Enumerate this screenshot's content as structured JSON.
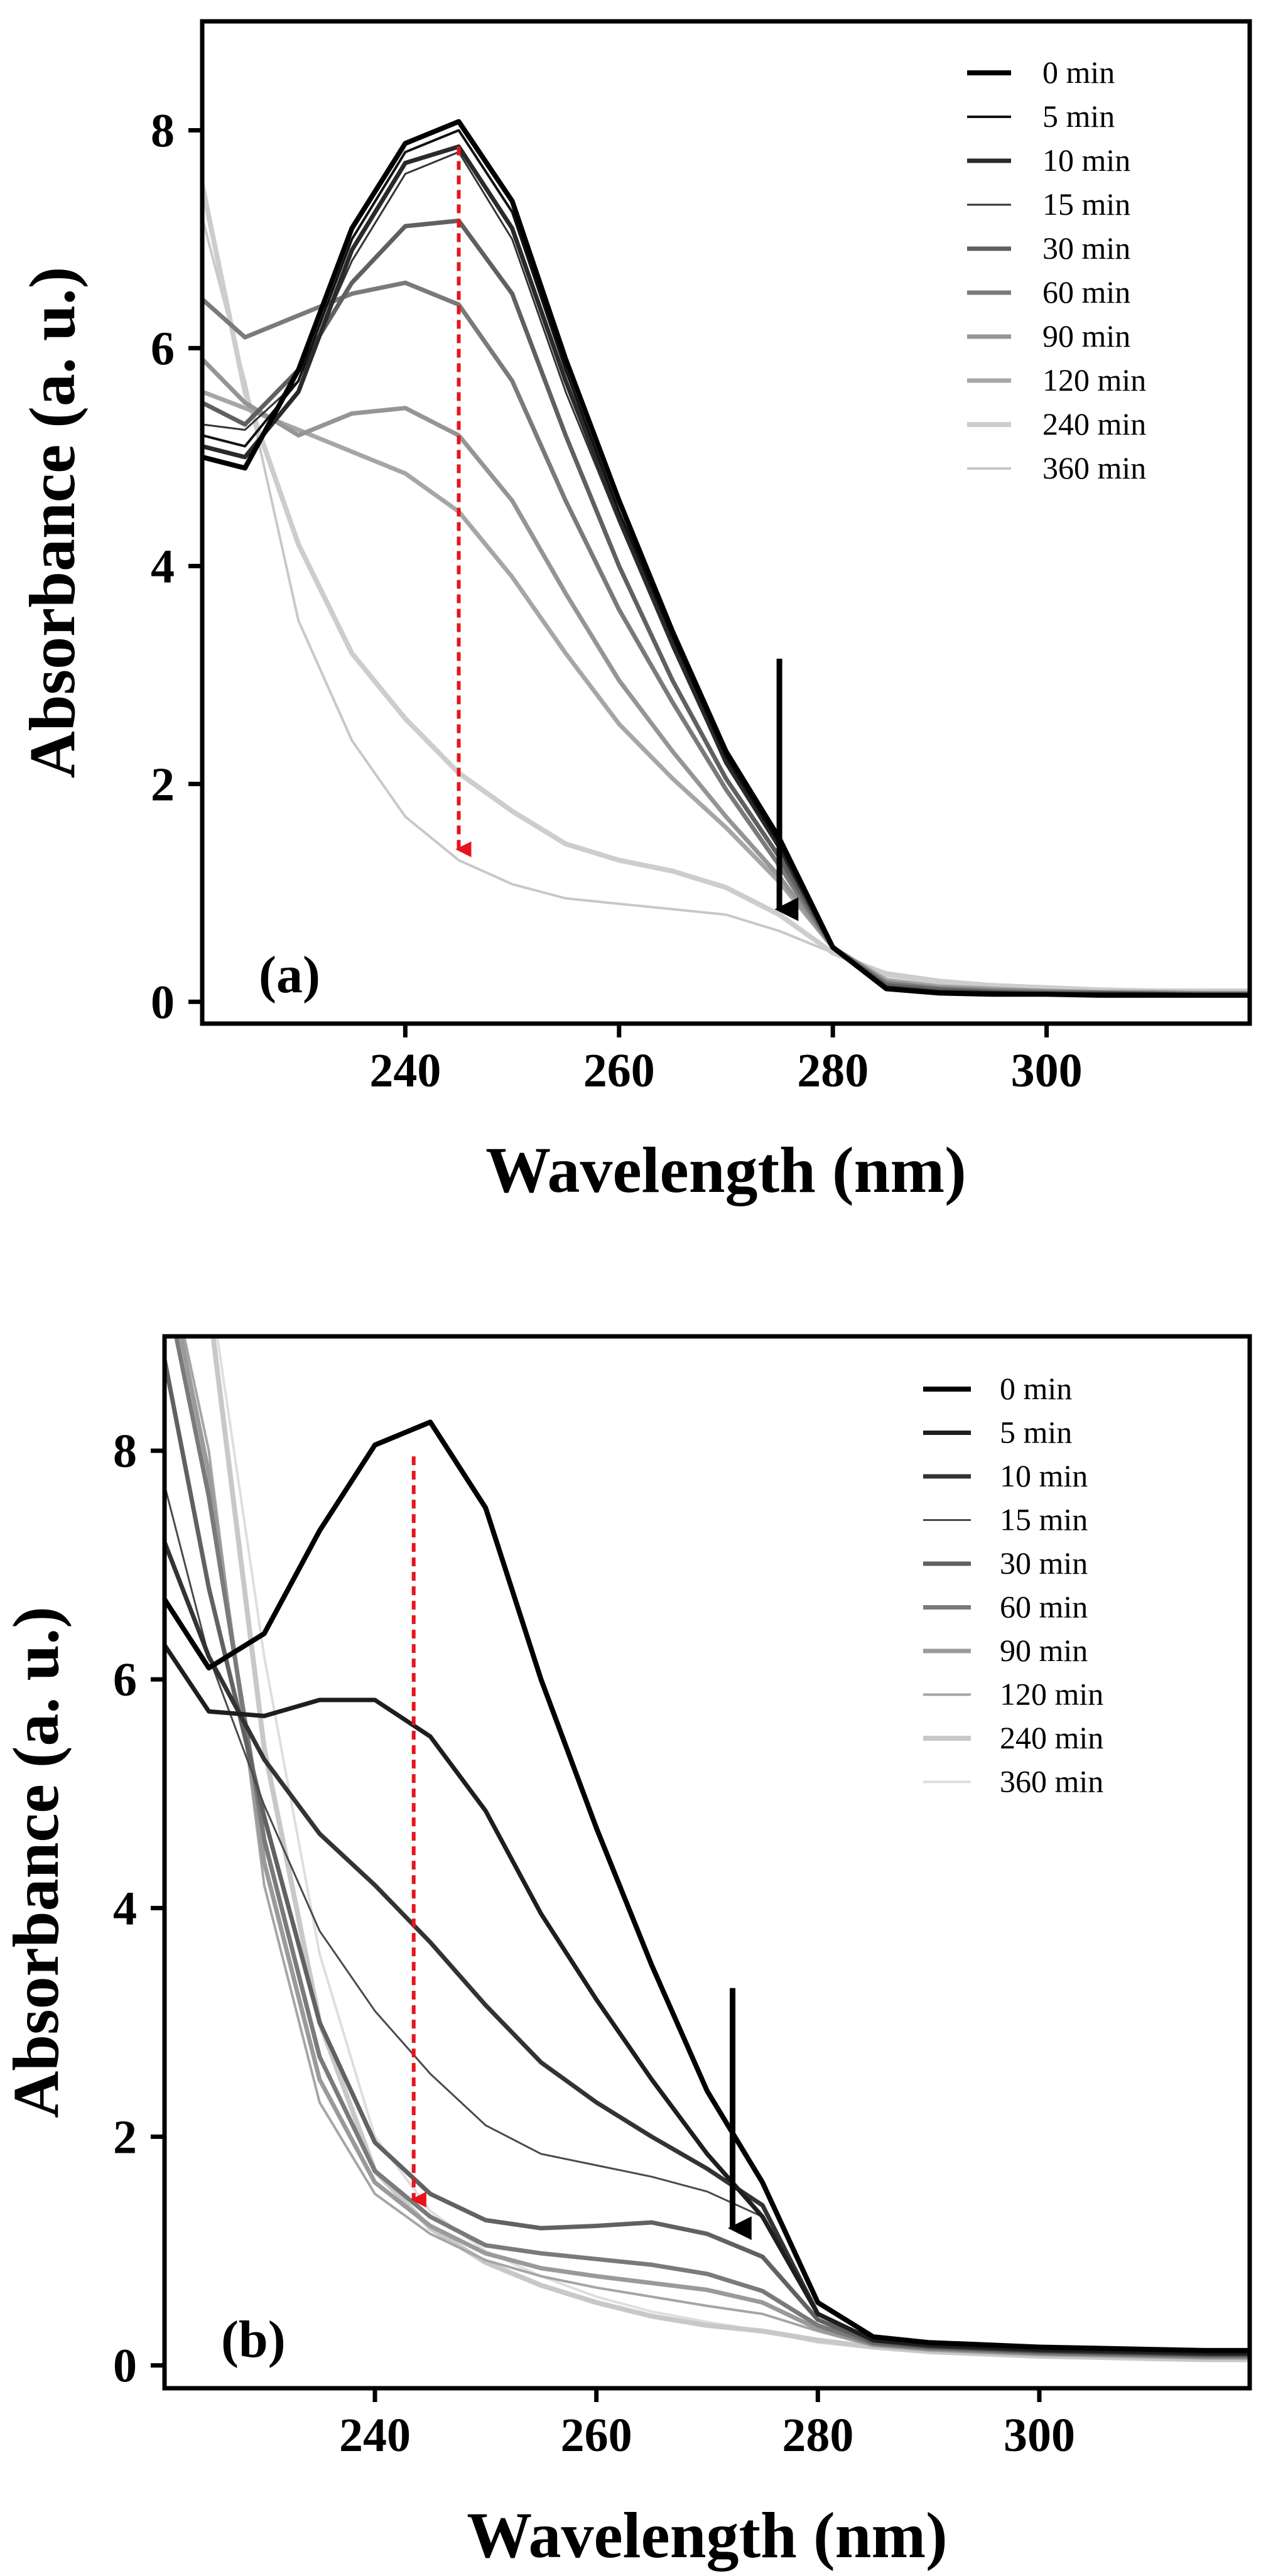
{
  "chart_data": [
    {
      "type": "line",
      "panel_label": "(a)",
      "xlabel": "Wavelength (nm)",
      "ylabel": "Absorbance (a. u.)",
      "xlim": [
        221,
        319
      ],
      "ylim": [
        -0.2,
        9.0
      ],
      "xticks": [
        240,
        260,
        280,
        300
      ],
      "yticks": [
        0,
        2,
        4,
        6,
        8
      ],
      "grid": false,
      "legend_position": "top-right",
      "x": [
        221,
        225,
        230,
        235,
        240,
        245,
        250,
        255,
        260,
        265,
        270,
        275,
        280,
        285,
        290,
        295,
        300,
        305,
        310,
        315,
        319
      ],
      "series": [
        {
          "name": "0 min",
          "color": "#000000",
          "width": 8,
          "values": [
            5.0,
            4.9,
            5.8,
            7.1,
            7.88,
            8.08,
            7.35,
            5.9,
            4.6,
            3.4,
            2.3,
            1.5,
            0.5,
            0.12,
            0.08,
            0.07,
            0.07,
            0.06,
            0.06,
            0.06,
            0.06
          ]
        },
        {
          "name": "5 min",
          "color": "#111111",
          "width": 4,
          "values": [
            5.2,
            5.1,
            5.7,
            7.0,
            7.8,
            8.0,
            7.25,
            5.8,
            4.5,
            3.35,
            2.25,
            1.45,
            0.5,
            0.13,
            0.09,
            0.08,
            0.07,
            0.07,
            0.06,
            0.06,
            0.06
          ]
        },
        {
          "name": "10 min",
          "color": "#2a2a2a",
          "width": 7,
          "values": [
            5.1,
            5.0,
            5.6,
            6.9,
            7.7,
            7.85,
            7.1,
            5.7,
            4.45,
            3.3,
            2.2,
            1.42,
            0.5,
            0.13,
            0.09,
            0.08,
            0.07,
            0.07,
            0.07,
            0.06,
            0.06
          ]
        },
        {
          "name": "15 min",
          "color": "#333333",
          "width": 3,
          "values": [
            5.3,
            5.25,
            5.7,
            6.8,
            7.6,
            7.8,
            7.0,
            5.6,
            4.4,
            3.25,
            2.18,
            1.4,
            0.52,
            0.14,
            0.1,
            0.09,
            0.08,
            0.07,
            0.07,
            0.07,
            0.07
          ]
        },
        {
          "name": "30 min",
          "color": "#606060",
          "width": 7,
          "values": [
            5.5,
            5.3,
            5.8,
            6.6,
            7.12,
            7.17,
            6.5,
            5.2,
            4.0,
            2.95,
            2.05,
            1.33,
            0.5,
            0.15,
            0.11,
            0.09,
            0.08,
            0.08,
            0.07,
            0.07,
            0.07
          ]
        },
        {
          "name": "60 min",
          "color": "#7a7a7a",
          "width": 7,
          "values": [
            6.45,
            6.1,
            6.3,
            6.5,
            6.6,
            6.4,
            5.7,
            4.6,
            3.6,
            2.75,
            1.95,
            1.25,
            0.5,
            0.17,
            0.12,
            0.1,
            0.09,
            0.08,
            0.08,
            0.07,
            0.07
          ]
        },
        {
          "name": "90 min",
          "color": "#959595",
          "width": 7,
          "values": [
            5.9,
            5.5,
            5.2,
            5.4,
            5.45,
            5.2,
            4.6,
            3.75,
            2.95,
            2.3,
            1.7,
            1.15,
            0.5,
            0.18,
            0.13,
            0.11,
            0.1,
            0.09,
            0.08,
            0.08,
            0.08
          ]
        },
        {
          "name": "120 min",
          "color": "#a6a6a6",
          "width": 7,
          "values": [
            5.6,
            5.45,
            5.25,
            5.05,
            4.85,
            4.5,
            3.9,
            3.2,
            2.55,
            2.05,
            1.6,
            1.1,
            0.5,
            0.2,
            0.14,
            0.12,
            0.1,
            0.09,
            0.09,
            0.08,
            0.08
          ]
        },
        {
          "name": "240 min",
          "color": "#cdcdcd",
          "width": 8,
          "values": [
            7.5,
            5.6,
            4.2,
            3.2,
            2.6,
            2.1,
            1.75,
            1.45,
            1.3,
            1.2,
            1.05,
            0.8,
            0.45,
            0.25,
            0.18,
            0.15,
            0.13,
            0.11,
            0.1,
            0.1,
            0.1
          ]
        },
        {
          "name": "360 min",
          "color": "#c8c8c8",
          "width": 4,
          "values": [
            7.2,
            5.7,
            3.5,
            2.4,
            1.7,
            1.3,
            1.08,
            0.95,
            0.9,
            0.85,
            0.8,
            0.65,
            0.45,
            0.27,
            0.2,
            0.16,
            0.13,
            0.12,
            0.1,
            0.1,
            0.1
          ]
        }
      ],
      "arrows": [
        {
          "color": "#e8141b",
          "dashed": true,
          "x": 245,
          "y_start": 7.85,
          "y_end": 1.4
        },
        {
          "color": "#000000",
          "dashed": false,
          "x": 275,
          "y_start": 3.15,
          "y_end": 0.85
        }
      ]
    },
    {
      "type": "line",
      "panel_label": "(b)",
      "xlabel": "Wavelength (nm)",
      "ylabel": "Absorbance (a. u.)",
      "xlim": [
        221,
        319
      ],
      "ylim": [
        -0.2,
        9.0
      ],
      "xticks": [
        240,
        260,
        280,
        300
      ],
      "yticks": [
        0,
        2,
        4,
        6,
        8
      ],
      "grid": false,
      "legend_position": "top-right",
      "x": [
        221,
        225,
        230,
        235,
        240,
        245,
        250,
        255,
        260,
        265,
        270,
        275,
        280,
        285,
        290,
        295,
        300,
        305,
        310,
        315,
        319
      ],
      "series": [
        {
          "name": "0 min",
          "color": "#000000",
          "width": 8,
          "values": [
            6.7,
            6.1,
            6.4,
            7.3,
            8.05,
            8.25,
            7.5,
            6.0,
            4.7,
            3.5,
            2.4,
            1.6,
            0.55,
            0.25,
            0.2,
            0.18,
            0.16,
            0.15,
            0.14,
            0.13,
            0.13
          ]
        },
        {
          "name": "5 min",
          "color": "#1e1e1e",
          "width": 7,
          "values": [
            6.3,
            5.72,
            5.68,
            5.82,
            5.82,
            5.5,
            4.85,
            3.95,
            3.2,
            2.5,
            1.85,
            1.3,
            0.45,
            0.22,
            0.18,
            0.16,
            0.14,
            0.13,
            0.12,
            0.11,
            0.11
          ]
        },
        {
          "name": "10 min",
          "color": "#333333",
          "width": 7,
          "values": [
            7.2,
            6.2,
            5.3,
            4.65,
            4.2,
            3.7,
            3.15,
            2.65,
            2.3,
            2.0,
            1.72,
            1.4,
            0.45,
            0.22,
            0.17,
            0.15,
            0.13,
            0.12,
            0.11,
            0.1,
            0.1
          ]
        },
        {
          "name": "15 min",
          "color": "#4a4a4a",
          "width": 3,
          "values": [
            7.7,
            6.2,
            4.9,
            3.8,
            3.1,
            2.55,
            2.1,
            1.85,
            1.75,
            1.65,
            1.52,
            1.3,
            0.45,
            0.22,
            0.17,
            0.15,
            0.13,
            0.12,
            0.11,
            0.1,
            0.1
          ]
        },
        {
          "name": "30 min",
          "color": "#616161",
          "width": 7,
          "values": [
            8.8,
            6.8,
            4.8,
            3.0,
            1.95,
            1.5,
            1.27,
            1.2,
            1.22,
            1.25,
            1.15,
            0.95,
            0.4,
            0.2,
            0.16,
            0.14,
            0.12,
            0.11,
            0.1,
            0.09,
            0.09
          ]
        },
        {
          "name": "60 min",
          "color": "#7a7a7a",
          "width": 7,
          "values": [
            9.5,
            7.6,
            4.6,
            2.7,
            1.7,
            1.3,
            1.05,
            0.98,
            0.93,
            0.88,
            0.8,
            0.65,
            0.35,
            0.19,
            0.15,
            0.13,
            0.11,
            0.1,
            0.09,
            0.08,
            0.08
          ]
        },
        {
          "name": "90 min",
          "color": "#9a9a9a",
          "width": 7,
          "values": [
            9.7,
            7.8,
            4.4,
            2.5,
            1.6,
            1.22,
            0.98,
            0.85,
            0.78,
            0.72,
            0.66,
            0.55,
            0.32,
            0.18,
            0.14,
            0.12,
            0.1,
            0.09,
            0.08,
            0.07,
            0.07
          ]
        },
        {
          "name": "120 min",
          "color": "#a5a5a5",
          "width": 4,
          "values": [
            9.8,
            8.0,
            4.2,
            2.3,
            1.5,
            1.15,
            0.92,
            0.78,
            0.68,
            0.6,
            0.52,
            0.45,
            0.3,
            0.17,
            0.13,
            0.11,
            0.09,
            0.08,
            0.07,
            0.06,
            0.06
          ]
        },
        {
          "name": "240 min",
          "color": "#c8c8c8",
          "width": 8,
          "values": [
            10.0,
            9.3,
            5.4,
            3.0,
            1.7,
            1.2,
            0.9,
            0.7,
            0.55,
            0.43,
            0.35,
            0.3,
            0.22,
            0.16,
            0.12,
            0.1,
            0.08,
            0.07,
            0.06,
            0.05,
            0.05
          ]
        },
        {
          "name": "360 min",
          "color": "#dedede",
          "width": 4,
          "values": [
            10.0,
            9.5,
            6.2,
            3.6,
            2.0,
            1.35,
            1.0,
            0.78,
            0.6,
            0.47,
            0.38,
            0.3,
            0.2,
            0.15,
            0.12,
            0.1,
            0.08,
            0.07,
            0.06,
            0.05,
            0.05
          ]
        }
      ],
      "arrows": [
        {
          "color": "#e8141b",
          "dashed": true,
          "x": 243.5,
          "y_start": 7.95,
          "y_end": 1.45
        },
        {
          "color": "#000000",
          "dashed": false,
          "x": 272.3,
          "y_start": 3.3,
          "y_end": 1.2
        }
      ]
    }
  ]
}
